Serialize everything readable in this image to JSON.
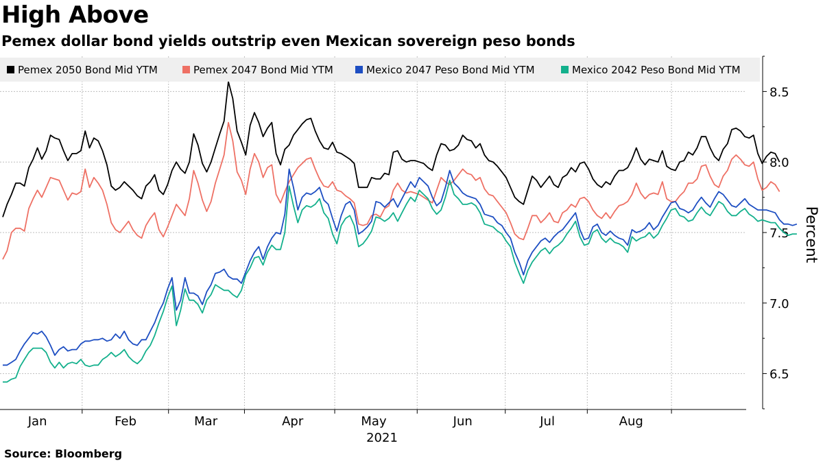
{
  "chart_data": {
    "type": "line",
    "title": "High Above",
    "subtitle": "Pemex dollar bond yields outstrip even Mexican sovereign peso bonds",
    "source": "Source: Bloomberg",
    "ylabel": "Percent",
    "ylim": [
      6.25,
      8.75
    ],
    "yticks": [
      6.5,
      7.0,
      7.5,
      8.0,
      8.5
    ],
    "ytick_labels": [
      "6.5",
      "7.0",
      "7.5",
      "8.0",
      "8.5"
    ],
    "x_range": [
      0,
      171
    ],
    "month_labels": [
      "Jan",
      "Feb",
      "Mar",
      "Apr",
      "May",
      "Jun",
      "Jul",
      "Aug"
    ],
    "month_label_at": [
      8.0,
      28.3,
      46.8,
      66.8,
      85.5,
      106.0,
      125.5,
      144.8
    ],
    "month_boundaries": [
      18.3,
      38.2,
      55.7,
      76.5,
      95.5,
      115.8,
      134.7,
      154.1
    ],
    "year_label": "2021",
    "grid": true,
    "legend_position": "top",
    "series": [
      {
        "name": "Pemex 2050 Bond Mid YTM",
        "color": "#000000",
        "values": [
          7.61,
          7.7,
          7.77,
          7.85,
          7.85,
          7.83,
          7.96,
          8.02,
          8.1,
          8.02,
          8.08,
          8.19,
          8.17,
          8.16,
          8.08,
          8.01,
          8.06,
          8.06,
          8.08,
          8.22,
          8.1,
          8.17,
          8.15,
          8.08,
          7.98,
          7.83,
          7.8,
          7.82,
          7.86,
          7.83,
          7.8,
          7.76,
          7.74,
          7.83,
          7.86,
          7.91,
          7.8,
          7.77,
          7.84,
          7.94,
          8.0,
          7.95,
          7.92,
          8.0,
          8.2,
          8.12,
          7.99,
          7.93,
          8.0,
          8.1,
          8.2,
          8.29,
          8.57,
          8.45,
          8.22,
          8.14,
          8.05,
          8.26,
          8.35,
          8.28,
          8.18,
          8.24,
          8.28,
          8.06,
          7.98,
          8.09,
          8.12,
          8.19,
          8.23,
          8.27,
          8.3,
          8.31,
          8.22,
          8.15,
          8.1,
          8.09,
          8.14,
          8.07,
          8.06,
          8.04,
          8.02,
          7.99,
          7.82,
          7.82,
          7.82,
          7.89,
          7.88,
          7.88,
          7.92,
          7.91,
          8.07,
          8.08,
          8.02,
          8.0,
          8.01,
          8.01,
          8.0,
          7.99,
          7.96,
          7.94,
          8.05,
          8.13,
          8.12,
          8.08,
          8.09,
          8.12,
          8.19,
          8.16,
          8.15,
          8.1,
          8.13,
          8.05,
          8.01,
          8.0,
          7.97,
          7.93,
          7.89,
          7.82,
          7.75,
          7.72,
          7.7,
          7.8,
          7.9,
          7.87,
          7.82,
          7.86,
          7.9,
          7.84,
          7.82,
          7.89,
          7.91,
          7.96,
          7.93,
          7.99,
          8.0,
          7.95,
          7.88,
          7.84,
          7.82,
          7.86,
          7.84,
          7.9,
          7.94,
          7.94,
          7.96,
          8.02,
          8.1,
          8.02,
          7.98,
          8.02,
          8.01,
          8.0,
          8.08,
          7.97,
          7.95,
          7.94,
          8.0,
          8.01,
          8.07,
          8.05,
          8.1,
          8.18,
          8.18,
          8.1,
          8.04,
          8.01,
          8.09,
          8.13,
          8.23,
          8.24,
          8.22,
          8.18,
          8.17,
          8.19,
          8.06,
          7.99,
          8.04,
          8.07,
          8.06,
          8.0
        ]
      },
      {
        "name": "Pemex 2047 Bond Mid YTM",
        "color": "#ee7064",
        "values": [
          7.31,
          7.37,
          7.5,
          7.53,
          7.53,
          7.51,
          7.67,
          7.74,
          7.8,
          7.75,
          7.82,
          7.89,
          7.88,
          7.87,
          7.8,
          7.73,
          7.78,
          7.77,
          7.79,
          7.95,
          7.82,
          7.89,
          7.85,
          7.8,
          7.7,
          7.57,
          7.52,
          7.5,
          7.54,
          7.58,
          7.52,
          7.48,
          7.46,
          7.55,
          7.6,
          7.64,
          7.52,
          7.47,
          7.54,
          7.62,
          7.7,
          7.66,
          7.62,
          7.74,
          7.94,
          7.85,
          7.73,
          7.65,
          7.72,
          7.85,
          7.95,
          8.05,
          8.28,
          8.15,
          7.93,
          7.87,
          7.77,
          7.95,
          8.06,
          8.0,
          7.89,
          7.96,
          7.98,
          7.77,
          7.71,
          7.79,
          7.86,
          7.91,
          7.96,
          7.99,
          8.02,
          8.03,
          7.95,
          7.88,
          7.83,
          7.82,
          7.86,
          7.8,
          7.79,
          7.76,
          7.74,
          7.71,
          7.56,
          7.55,
          7.56,
          7.62,
          7.63,
          7.61,
          7.67,
          7.69,
          7.8,
          7.85,
          7.8,
          7.78,
          7.79,
          7.78,
          7.77,
          7.75,
          7.73,
          7.71,
          7.8,
          7.89,
          7.86,
          7.84,
          7.87,
          7.91,
          7.95,
          7.92,
          7.91,
          7.87,
          7.89,
          7.81,
          7.77,
          7.76,
          7.72,
          7.68,
          7.64,
          7.57,
          7.49,
          7.46,
          7.45,
          7.53,
          7.62,
          7.62,
          7.57,
          7.6,
          7.64,
          7.58,
          7.57,
          7.64,
          7.66,
          7.7,
          7.68,
          7.74,
          7.75,
          7.72,
          7.66,
          7.62,
          7.6,
          7.64,
          7.6,
          7.65,
          7.69,
          7.7,
          7.72,
          7.77,
          7.85,
          7.78,
          7.74,
          7.77,
          7.78,
          7.77,
          7.86,
          7.74,
          7.72,
          7.72,
          7.76,
          7.79,
          7.85,
          7.85,
          7.88,
          7.97,
          7.98,
          7.9,
          7.84,
          7.82,
          7.9,
          7.94,
          8.02,
          8.05,
          8.02,
          7.98,
          7.97,
          8.0,
          7.88,
          7.8,
          7.82,
          7.86,
          7.84,
          7.79
        ]
      },
      {
        "name": "Mexico 2047 Peso Bond Mid YTM",
        "color": "#1d4ec2",
        "values": [
          6.56,
          6.56,
          6.58,
          6.6,
          6.66,
          6.71,
          6.75,
          6.79,
          6.78,
          6.8,
          6.76,
          6.7,
          6.63,
          6.67,
          6.69,
          6.66,
          6.67,
          6.67,
          6.71,
          6.73,
          6.73,
          6.74,
          6.74,
          6.75,
          6.73,
          6.74,
          6.78,
          6.75,
          6.8,
          6.74,
          6.71,
          6.7,
          6.74,
          6.74,
          6.8,
          6.86,
          6.94,
          7.0,
          7.1,
          7.18,
          6.95,
          7.02,
          7.18,
          7.07,
          7.07,
          7.05,
          6.99,
          7.08,
          7.13,
          7.21,
          7.22,
          7.24,
          7.19,
          7.17,
          7.17,
          7.14,
          7.22,
          7.3,
          7.36,
          7.4,
          7.31,
          7.4,
          7.46,
          7.5,
          7.49,
          7.63,
          7.95,
          7.82,
          7.66,
          7.75,
          7.78,
          7.77,
          7.79,
          7.82,
          7.73,
          7.7,
          7.6,
          7.51,
          7.62,
          7.7,
          7.72,
          7.66,
          7.49,
          7.51,
          7.54,
          7.58,
          7.72,
          7.71,
          7.68,
          7.71,
          7.74,
          7.68,
          7.74,
          7.8,
          7.86,
          7.82,
          7.89,
          7.86,
          7.83,
          7.75,
          7.69,
          7.72,
          7.82,
          7.94,
          7.85,
          7.82,
          7.78,
          7.76,
          7.75,
          7.74,
          7.7,
          7.63,
          7.62,
          7.61,
          7.57,
          7.55,
          7.5,
          7.46,
          7.36,
          7.29,
          7.2,
          7.3,
          7.36,
          7.4,
          7.44,
          7.46,
          7.43,
          7.47,
          7.5,
          7.52,
          7.56,
          7.6,
          7.64,
          7.52,
          7.45,
          7.46,
          7.54,
          7.56,
          7.5,
          7.48,
          7.51,
          7.48,
          7.46,
          7.45,
          7.41,
          7.52,
          7.5,
          7.51,
          7.53,
          7.57,
          7.52,
          7.55,
          7.61,
          7.66,
          7.71,
          7.72,
          7.67,
          7.66,
          7.64,
          7.66,
          7.71,
          7.75,
          7.71,
          7.68,
          7.74,
          7.79,
          7.77,
          7.73,
          7.69,
          7.68,
          7.71,
          7.74,
          7.7,
          7.68,
          7.66,
          7.66,
          7.66,
          7.65,
          7.64,
          7.59,
          7.56,
          7.56,
          7.55,
          7.56
        ]
      },
      {
        "name": "Mexico 2042 Peso Bond Mid YTM",
        "color": "#13b08c",
        "values": [
          6.44,
          6.44,
          6.46,
          6.47,
          6.55,
          6.6,
          6.65,
          6.68,
          6.68,
          6.68,
          6.65,
          6.58,
          6.54,
          6.58,
          6.54,
          6.57,
          6.58,
          6.57,
          6.6,
          6.56,
          6.55,
          6.56,
          6.56,
          6.6,
          6.62,
          6.65,
          6.62,
          6.64,
          6.67,
          6.62,
          6.59,
          6.57,
          6.6,
          6.66,
          6.7,
          6.77,
          6.86,
          6.94,
          7.04,
          7.12,
          6.84,
          6.95,
          7.1,
          7.02,
          7.02,
          6.99,
          6.93,
          7.02,
          7.06,
          7.13,
          7.11,
          7.09,
          7.09,
          7.06,
          7.04,
          7.09,
          7.2,
          7.25,
          7.32,
          7.33,
          7.27,
          7.36,
          7.41,
          7.38,
          7.38,
          7.5,
          7.83,
          7.69,
          7.57,
          7.66,
          7.69,
          7.68,
          7.7,
          7.74,
          7.64,
          7.6,
          7.49,
          7.42,
          7.55,
          7.6,
          7.62,
          7.55,
          7.4,
          7.42,
          7.46,
          7.51,
          7.61,
          7.6,
          7.58,
          7.6,
          7.64,
          7.58,
          7.64,
          7.7,
          7.75,
          7.72,
          7.8,
          7.77,
          7.74,
          7.67,
          7.63,
          7.66,
          7.75,
          7.87,
          7.77,
          7.74,
          7.7,
          7.7,
          7.71,
          7.69,
          7.64,
          7.56,
          7.55,
          7.54,
          7.51,
          7.49,
          7.44,
          7.4,
          7.29,
          7.21,
          7.14,
          7.23,
          7.29,
          7.33,
          7.37,
          7.39,
          7.35,
          7.39,
          7.41,
          7.44,
          7.49,
          7.53,
          7.58,
          7.47,
          7.41,
          7.42,
          7.5,
          7.52,
          7.46,
          7.43,
          7.46,
          7.43,
          7.42,
          7.4,
          7.36,
          7.47,
          7.44,
          7.46,
          7.47,
          7.5,
          7.46,
          7.49,
          7.55,
          7.6,
          7.66,
          7.67,
          7.62,
          7.61,
          7.58,
          7.59,
          7.64,
          7.68,
          7.64,
          7.62,
          7.67,
          7.72,
          7.7,
          7.65,
          7.62,
          7.62,
          7.65,
          7.67,
          7.63,
          7.61,
          7.58,
          7.59,
          7.58,
          7.57,
          7.57,
          7.53,
          7.5,
          7.48,
          7.49,
          7.49
        ]
      }
    ]
  }
}
